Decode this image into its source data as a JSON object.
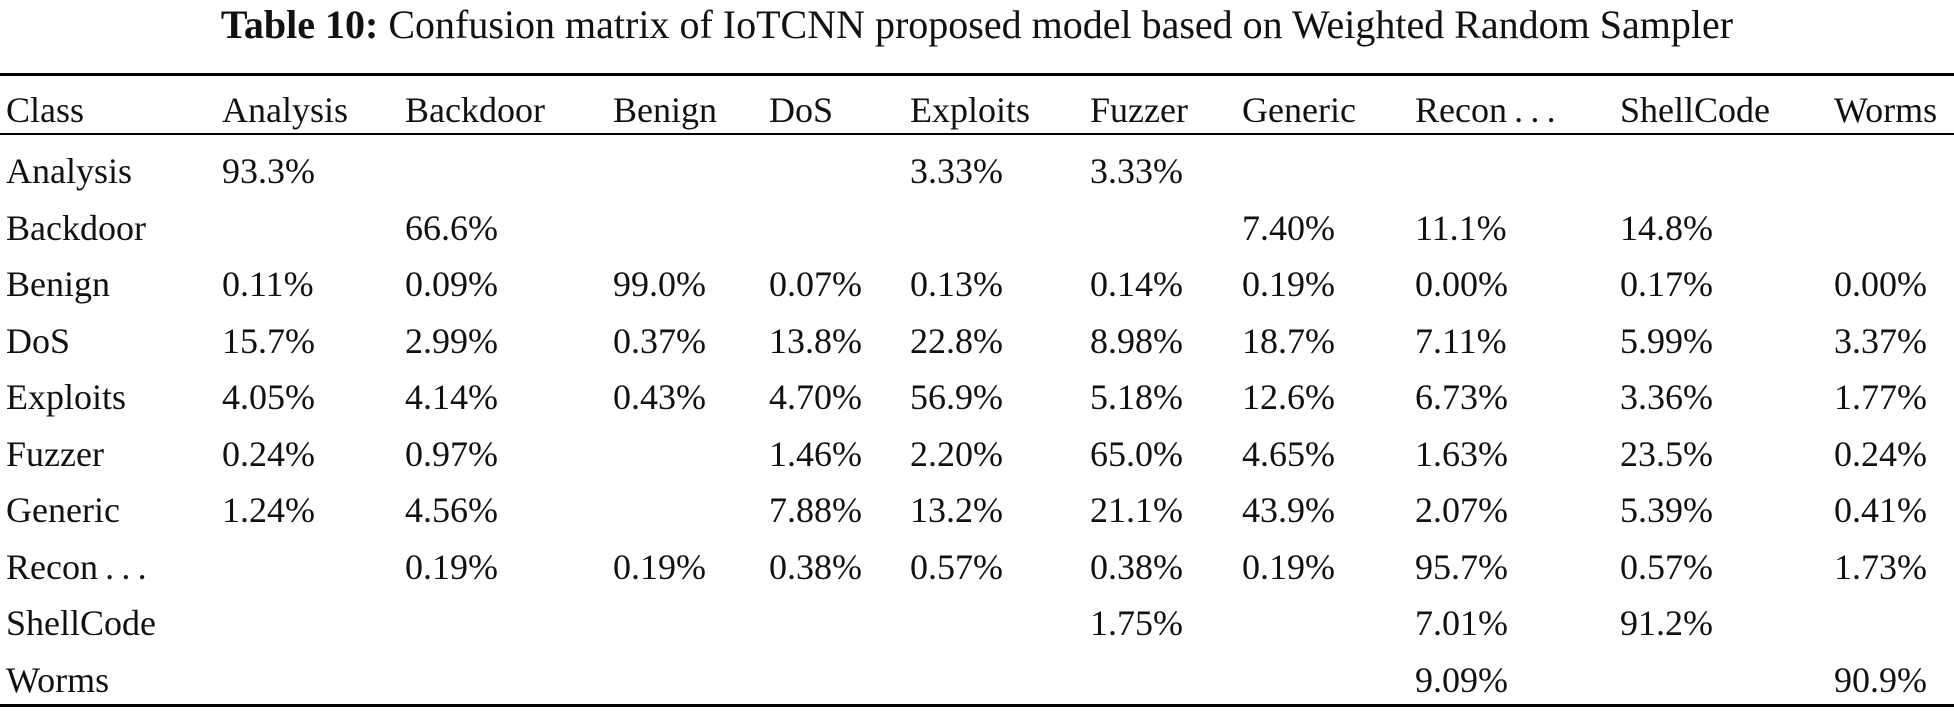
{
  "caption": {
    "label": "Table 10:",
    "text": "Confusion matrix of IoTCNN proposed model based on Weighted Random Sampler"
  },
  "table": {
    "headers": [
      "Class",
      "Analysis",
      "Backdoor",
      "Benign",
      "DoS",
      "Exploits",
      "Fuzzer",
      "Generic",
      "Recon . . .",
      "ShellCode",
      "Worms"
    ],
    "rows": [
      [
        "Analysis",
        "93.3%",
        "",
        "",
        "",
        "3.33%",
        "3.33%",
        "",
        "",
        "",
        ""
      ],
      [
        "Backdoor",
        "",
        "66.6%",
        "",
        "",
        "",
        "",
        "7.40%",
        "11.1%",
        "14.8%",
        ""
      ],
      [
        "Benign",
        "0.11%",
        "0.09%",
        "99.0%",
        "0.07%",
        "0.13%",
        "0.14%",
        "0.19%",
        "0.00%",
        "0.17%",
        "0.00%"
      ],
      [
        "DoS",
        "15.7%",
        "2.99%",
        "0.37%",
        "13.8%",
        "22.8%",
        "8.98%",
        "18.7%",
        "7.11%",
        "5.99%",
        "3.37%"
      ],
      [
        "Exploits",
        "4.05%",
        "4.14%",
        "0.43%",
        "4.70%",
        "56.9%",
        "5.18%",
        "12.6%",
        "6.73%",
        "3.36%",
        "1.77%"
      ],
      [
        "Fuzzer",
        "0.24%",
        "0.97%",
        "",
        "1.46%",
        "2.20%",
        "65.0%",
        "4.65%",
        "1.63%",
        "23.5%",
        "0.24%"
      ],
      [
        "Generic",
        "1.24%",
        "4.56%",
        "",
        "7.88%",
        "13.2%",
        "21.1%",
        "43.9%",
        "2.07%",
        "5.39%",
        "0.41%"
      ],
      [
        "Recon . . .",
        "",
        "0.19%",
        "0.19%",
        "0.38%",
        "0.57%",
        "0.38%",
        "0.19%",
        "95.7%",
        "0.57%",
        "1.73%"
      ],
      [
        "ShellCode",
        "",
        "",
        "",
        "",
        "",
        "1.75%",
        "",
        "7.01%",
        "91.2%",
        ""
      ],
      [
        "Worms",
        "",
        "",
        "",
        "",
        "",
        "",
        "",
        "9.09%",
        "",
        "90.9%"
      ]
    ]
  }
}
